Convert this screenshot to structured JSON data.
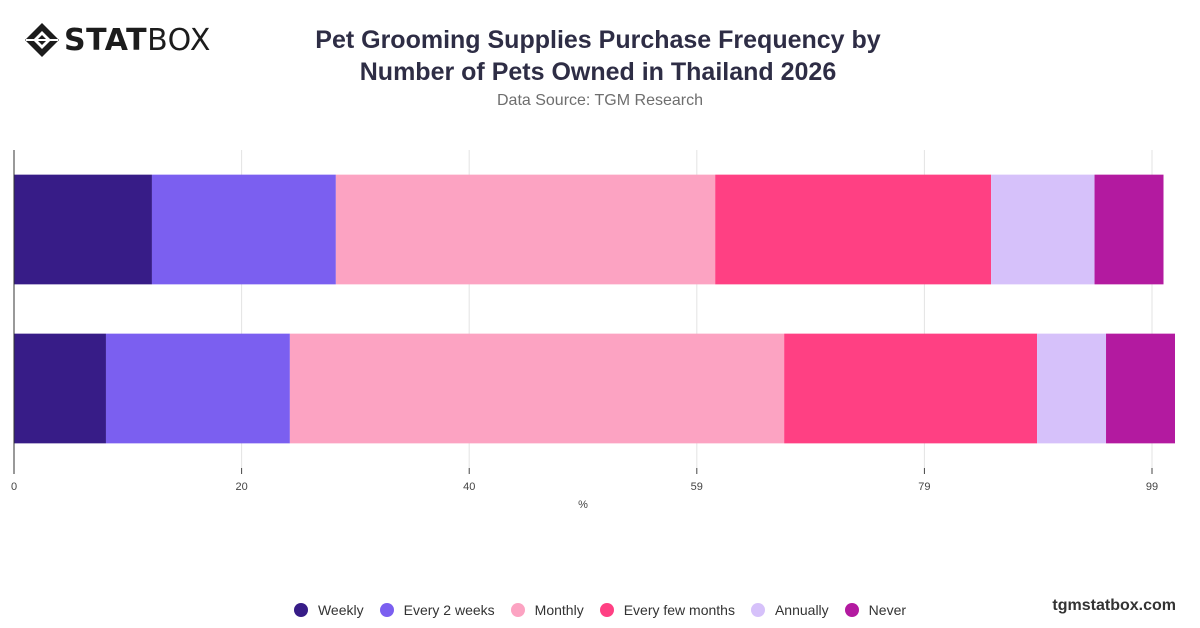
{
  "brand": {
    "logo_bold": "STAT",
    "logo_light": "BOX",
    "website": "tgmstatbox.com"
  },
  "header": {
    "title_line1": "Pet Grooming Supplies Purchase Frequency by",
    "title_line2": "Number of Pets Owned in Thailand 2026",
    "subtitle": "Data Source: TGM Research"
  },
  "chart_data": {
    "type": "bar",
    "orientation": "horizontal",
    "stacked": true,
    "xlabel": "%",
    "xlim": [
      0,
      101
    ],
    "x_ticks": [
      "0",
      "20",
      "40",
      "59",
      "79",
      "99"
    ],
    "x_tick_values": [
      0,
      19.8,
      39.6,
      59.4,
      79.2,
      99
    ],
    "grid": true,
    "legend_position": "bottom",
    "categories": [
      "",
      ""
    ],
    "series": [
      {
        "name": "Weekly",
        "color": "#371c87",
        "values": [
          12,
          8
        ]
      },
      {
        "name": "Every 2 weeks",
        "color": "#7b5ff0",
        "values": [
          16,
          16
        ]
      },
      {
        "name": "Monthly",
        "color": "#fca3c2",
        "values": [
          33,
          43
        ]
      },
      {
        "name": "Every few months",
        "color": "#ff4083",
        "values": [
          24,
          22
        ]
      },
      {
        "name": "Annually",
        "color": "#d6c1fa",
        "values": [
          9,
          6
        ]
      },
      {
        "name": "Never",
        "color": "#b31aa0",
        "values": [
          6,
          6
        ]
      }
    ]
  }
}
